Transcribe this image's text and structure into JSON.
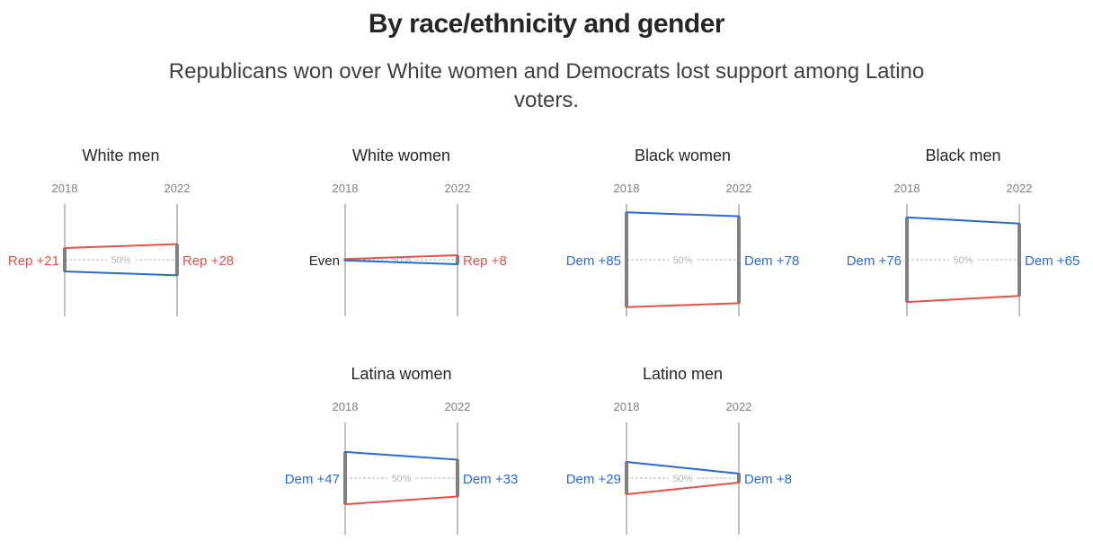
{
  "title": "By race/ethnicity and gender",
  "subtitle": "Republicans won over White women and Democrats lost support among Latino voters.",
  "colors": {
    "dem": "#2a6ad8",
    "rep": "#e5524a",
    "even": "#262626",
    "axis": "#808080",
    "midline": "#b3b3b3"
  },
  "chart_data": {
    "type": "line",
    "years": [
      "2018",
      "2022"
    ],
    "midline_label": "50%",
    "panels": [
      {
        "name": "White men",
        "label_2018": "Rep +21",
        "label_2022": "Rep +28",
        "margin_2018": 21,
        "margin_2022": 28
      },
      {
        "name": "White women",
        "label_2018": "Even",
        "label_2022": "Rep +8",
        "margin_2018": 0,
        "margin_2022": 8
      },
      {
        "name": "Black women",
        "label_2018": "Dem +85",
        "label_2022": "Dem +78",
        "margin_2018": -85,
        "margin_2022": -78
      },
      {
        "name": "Black men",
        "label_2018": "Dem +76",
        "label_2022": "Dem +65",
        "margin_2018": -76,
        "margin_2022": -65
      },
      {
        "name": "Latina women",
        "label_2018": "Dem +47",
        "label_2022": "Dem +33",
        "margin_2018": -47,
        "margin_2022": -33
      },
      {
        "name": "Latino men",
        "label_2018": "Dem +29",
        "label_2022": "Dem +8",
        "margin_2018": -29,
        "margin_2022": -8
      }
    ]
  }
}
